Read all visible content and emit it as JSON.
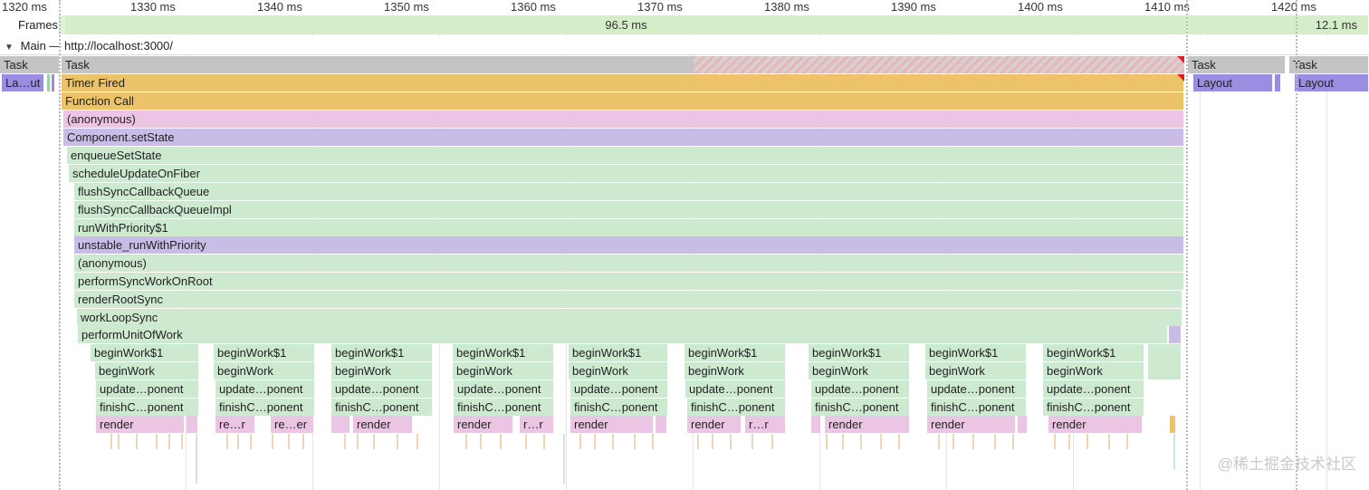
{
  "ruler": {
    "ticks": [
      "1320 ms",
      "1330 ms",
      "1340 ms",
      "1350 ms",
      "1360 ms",
      "1370 ms",
      "1380 ms",
      "1390 ms",
      "1400 ms",
      "1410 ms",
      "1420 ms"
    ]
  },
  "frames": {
    "label": "Frames",
    "seg1": "96.5 ms",
    "seg2": "12.1 ms"
  },
  "main": {
    "title": "Main — http://localhost:3000/"
  },
  "tracks": {
    "task": "Task",
    "layout_short": "La…ut",
    "layout": "Layout",
    "timer_fired": "Timer Fired",
    "function_call": "Function Call",
    "anonymous": "(anonymous)",
    "set_state": "Component.setState",
    "enqueue": "enqueueSetState",
    "schedule": "scheduleUpdateOnFiber",
    "flush_queue": "flushSyncCallbackQueue",
    "flush_queue_impl": "flushSyncCallbackQueueImpl",
    "run_with_priority": "runWithPriority$1",
    "unstable": "unstable_runWithPriority",
    "anonymous2": "(anonymous)",
    "perform_sync": "performSyncWorkOnRoot",
    "render_root": "renderRootSync",
    "work_loop": "workLoopSync",
    "perform_unit": "performUnitOfWork",
    "begin_work1": "beginWork$1",
    "begin_work": "beginWork",
    "update": "update…ponent",
    "finish": "finishC…ponent",
    "render": "render",
    "re_r": "re…r",
    "re_er": "re…er",
    "r_r": "r…r"
  },
  "watermark": "@稀土掘金技术社区"
}
